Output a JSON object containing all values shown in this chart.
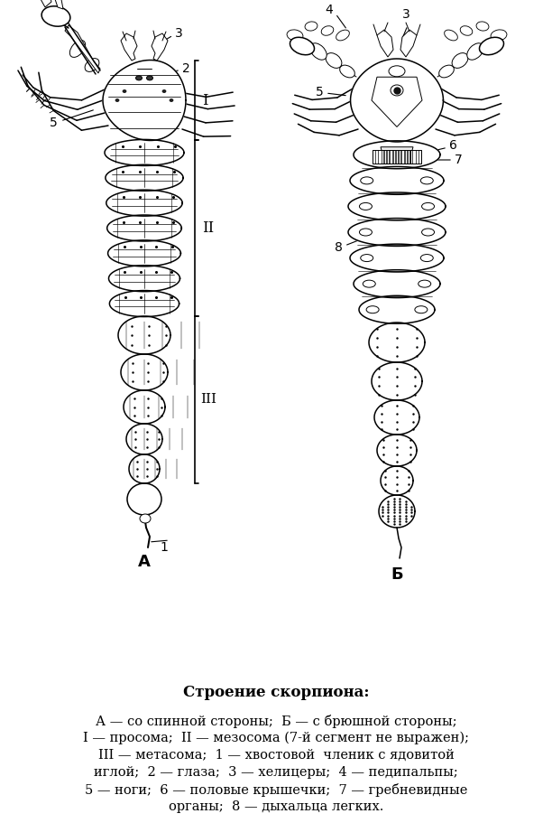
{
  "title": "Строение скорпиона:",
  "caption_line1": "А — со спинной стороны;  Б — с брюшной стороны;",
  "caption_line2": "I — просома;  II — мезосома (7-й сегмент не выражен);",
  "caption_line3": "III — метасома;  1 — хвостовой  членик с ядовитой",
  "caption_line4": "иглой;  2 — глаза;  3 — хелицеры;  4 — педипальпы;",
  "caption_line5": "5 — ноги;  6 — половые крышечки;  7 — гребневидные",
  "caption_line6": "органы;  8 — дыхальца легких.",
  "bg_color": "#ffffff",
  "text_color": "#000000",
  "fig_width": 6.12,
  "fig_height": 9.11,
  "dpi": 100
}
